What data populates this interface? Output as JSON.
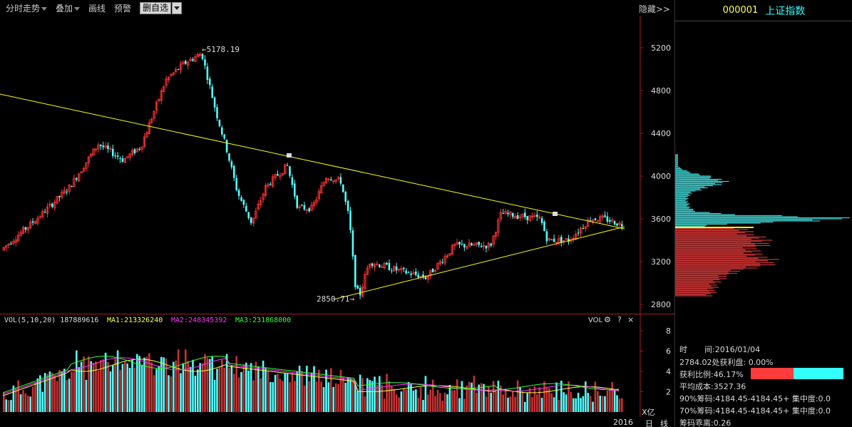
{
  "toolbar": {
    "items": [
      "分时走势",
      "叠加",
      "画线",
      "预警"
    ],
    "delete_btn": "删自选",
    "hide_label": "隐藏>>"
  },
  "main_chart": {
    "high_label": "5178.19",
    "low_label": "2850.71",
    "y_ticks": [
      "5200",
      "4800",
      "4400",
      "4000",
      "3600",
      "3200",
      "2800"
    ]
  },
  "vol_chart": {
    "header": {
      "vol": "VOL(5,10,20)",
      "vol_value": "187889616",
      "ma1": "MA1:213326240",
      "ma2": "MA2:248345392",
      "ma3": "MA3:231868000"
    },
    "tools_label": "VOL",
    "y_ticks": [
      "8",
      "6",
      "4",
      "2"
    ],
    "unit": "X亿"
  },
  "bottom": {
    "year": "2016",
    "period": "日",
    "line": "线"
  },
  "side": {
    "code": "000001",
    "name": "上证指数",
    "info": {
      "time_label": "时",
      "time_label2": "间:2016/01/04",
      "profit_line": "2784.02处获利盘: 0.00%",
      "profit_ratio": "获利比例:46.17%",
      "avg_cost": "平均成本:3527.36",
      "chip90": "90%筹码:4184.45-4184.45+ 集中度:0.0",
      "chip70": "70%筹码:4184.45-4184.45+ 集中度:0.0",
      "divergence": "筹码乖离:0.26"
    },
    "profit_ratio_value": 0.4617
  },
  "colors": {
    "up": "#ff3232",
    "down": "#54ffff",
    "ma1": "#ffffff",
    "ma2": "#ff33ff",
    "ma3": "#33ff33",
    "trend": "#ffff00",
    "code": "#ffff55",
    "name": "#33ffff"
  }
}
